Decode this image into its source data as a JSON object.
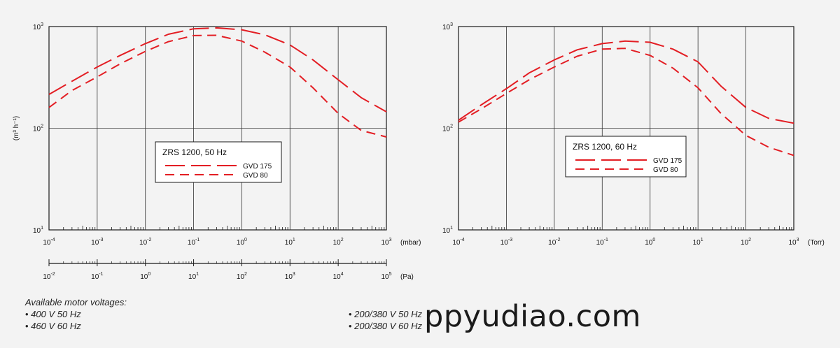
{
  "colors": {
    "curve": "#e31e24",
    "axis": "#1a1a1a",
    "grid": "#333333",
    "background": "#f3f3f3"
  },
  "chart_data": [
    {
      "type": "line",
      "title": "ZRS 1200, 50 Hz",
      "ylabel": "(m³ h⁻¹)",
      "x_scale": "log",
      "y_scale": "log",
      "xlim": [
        0.0001,
        1000
      ],
      "ylim": [
        10,
        1000
      ],
      "xunit": "(mbar)",
      "x_ticks": [
        {
          "base": "10",
          "exp": "-4"
        },
        {
          "base": "10",
          "exp": "-3"
        },
        {
          "base": "10",
          "exp": "-2"
        },
        {
          "base": "10",
          "exp": "-1"
        },
        {
          "base": "10",
          "exp": "0"
        },
        {
          "base": "10",
          "exp": "1"
        },
        {
          "base": "10",
          "exp": "2"
        },
        {
          "base": "10",
          "exp": "3"
        }
      ],
      "y_ticks": [
        {
          "base": "10",
          "exp": "1"
        },
        {
          "base": "10",
          "exp": "2"
        },
        {
          "base": "10",
          "exp": "3"
        }
      ],
      "secondary_x": {
        "unit": "(Pa)",
        "ticks": [
          {
            "base": "10",
            "exp": "-2"
          },
          {
            "base": "10",
            "exp": "-1"
          },
          {
            "base": "10",
            "exp": "0"
          },
          {
            "base": "10",
            "exp": "1"
          },
          {
            "base": "10",
            "exp": "2"
          },
          {
            "base": "10",
            "exp": "3"
          },
          {
            "base": "10",
            "exp": "4"
          },
          {
            "base": "10",
            "exp": "5"
          }
        ]
      },
      "grid": true,
      "legend_placement": "center-left",
      "series": [
        {
          "name": "GVD 175",
          "dash": "long",
          "x": [
            0.0001,
            0.0003,
            0.001,
            0.003,
            0.01,
            0.03,
            0.1,
            0.3,
            1,
            3,
            10,
            30,
            100,
            300,
            1000
          ],
          "y": [
            215,
            290,
            400,
            520,
            680,
            840,
            950,
            970,
            930,
            830,
            660,
            470,
            300,
            200,
            145
          ]
        },
        {
          "name": "GVD 80",
          "dash": "short",
          "x": [
            0.0001,
            0.0003,
            0.001,
            0.003,
            0.01,
            0.03,
            0.1,
            0.3,
            1,
            3,
            10,
            30,
            100,
            300,
            1000
          ],
          "y": [
            160,
            235,
            320,
            430,
            570,
            710,
            815,
            820,
            720,
            560,
            400,
            250,
            140,
            95,
            82
          ]
        }
      ]
    },
    {
      "type": "line",
      "title": "ZRS 1200, 60 Hz",
      "x_scale": "log",
      "y_scale": "log",
      "xlim": [
        0.0001,
        1000
      ],
      "ylim": [
        10,
        1000
      ],
      "xunit": "(Torr)",
      "x_ticks": [
        {
          "base": "10",
          "exp": "-4"
        },
        {
          "base": "10",
          "exp": "-3"
        },
        {
          "base": "10",
          "exp": "-2"
        },
        {
          "base": "10",
          "exp": "-1"
        },
        {
          "base": "10",
          "exp": "0"
        },
        {
          "base": "10",
          "exp": "1"
        },
        {
          "base": "10",
          "exp": "2"
        },
        {
          "base": "10",
          "exp": "3"
        }
      ],
      "y_ticks": [
        {
          "base": "10",
          "exp": "1"
        },
        {
          "base": "10",
          "exp": "2"
        },
        {
          "base": "10",
          "exp": "3"
        }
      ],
      "grid": true,
      "legend_placement": "center-right",
      "series": [
        {
          "name": "GVD 175",
          "dash": "long",
          "x": [
            0.0001,
            0.0003,
            0.001,
            0.003,
            0.01,
            0.03,
            0.1,
            0.3,
            1,
            3,
            10,
            30,
            100,
            300,
            1000
          ],
          "y": [
            120,
            170,
            245,
            350,
            470,
            590,
            680,
            720,
            700,
            600,
            450,
            260,
            160,
            125,
            112
          ]
        },
        {
          "name": "GVD 80",
          "dash": "short",
          "x": [
            0.0001,
            0.0003,
            0.001,
            0.003,
            0.01,
            0.03,
            0.1,
            0.3,
            1,
            3,
            10,
            30,
            100,
            300,
            1000
          ],
          "y": [
            115,
            155,
            220,
            300,
            400,
            510,
            600,
            610,
            520,
            390,
            250,
            140,
            85,
            65,
            54
          ]
        }
      ]
    }
  ],
  "notes": {
    "heading": "Available motor voltages:",
    "left": [
      "400 V 50 Hz",
      "460 V 60 Hz"
    ],
    "right": [
      "200/380 V 50 Hz",
      "200/380 V 60 Hz"
    ]
  },
  "watermark": "ppyudiao.com"
}
